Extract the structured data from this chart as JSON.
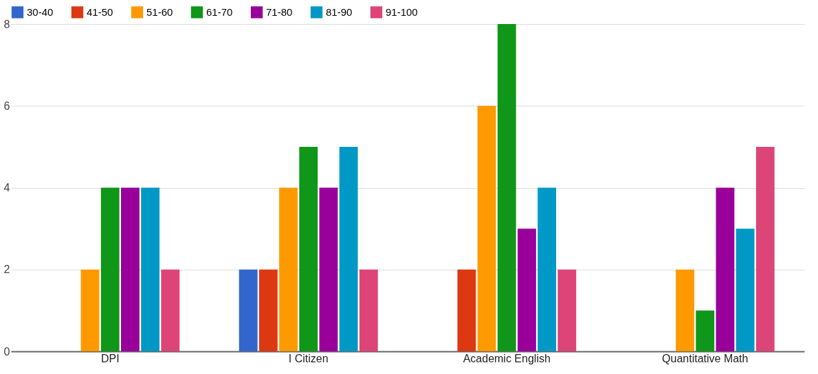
{
  "chart_data": {
    "type": "bar",
    "categories": [
      "DPI",
      "I Citizen",
      "Academic English",
      "Quantitative Math"
    ],
    "series": [
      {
        "name": "30-40",
        "color": "#3366cc",
        "values": [
          null,
          2,
          null,
          null
        ]
      },
      {
        "name": "41-50",
        "color": "#dc3912",
        "values": [
          null,
          2,
          2,
          null
        ]
      },
      {
        "name": "51-60",
        "color": "#ff9900",
        "values": [
          2,
          4,
          6,
          2
        ]
      },
      {
        "name": "61-70",
        "color": "#109618",
        "values": [
          4,
          5,
          8,
          1
        ]
      },
      {
        "name": "71-80",
        "color": "#990099",
        "values": [
          4,
          4,
          3,
          4
        ]
      },
      {
        "name": "81-90",
        "color": "#0099c6",
        "values": [
          4,
          5,
          4,
          3
        ]
      },
      {
        "name": "91-100",
        "color": "#dd4477",
        "values": [
          2,
          2,
          2,
          5
        ]
      }
    ],
    "ylim": [
      0,
      8
    ],
    "yticks": [
      0,
      2,
      4,
      6,
      8
    ],
    "grid": true,
    "legend": "top left"
  }
}
